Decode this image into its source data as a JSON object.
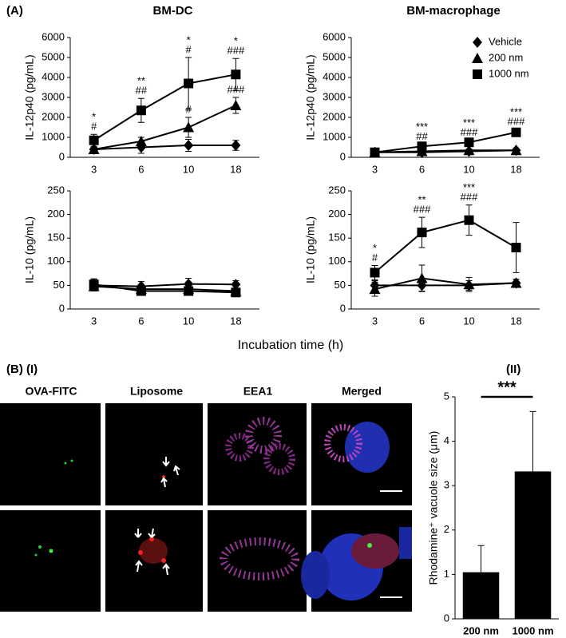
{
  "labels": {
    "panel_a": "(A)",
    "x_axis": "Incubation time (h)",
    "panel_b": "(B) (I)",
    "image_columns": [
      "OVA-FITC",
      "Liposome",
      "EEA1",
      "Merged"
    ]
  },
  "chart_data": [
    {
      "type": "line",
      "title": "BM-DC",
      "ylabel": "IL-12p40 (pg/mL)",
      "categories": [
        "3",
        "6",
        "10",
        "18"
      ],
      "ylim": [
        0,
        6000
      ],
      "yticks": [
        0,
        1000,
        2000,
        3000,
        4000,
        5000,
        6000
      ],
      "series": [
        {
          "marker": "diamond",
          "color": "#000000",
          "values": [
            400,
            500,
            600,
            600
          ],
          "errors": [
            100,
            300,
            300,
            250
          ]
        },
        {
          "marker": "triangle",
          "color": "#000000",
          "values": [
            400,
            800,
            1500,
            2600
          ],
          "errors": [
            100,
            200,
            500,
            400
          ],
          "annotations": [
            null,
            null,
            [
              "#"
            ],
            [
              "###"
            ]
          ]
        },
        {
          "marker": "square",
          "color": "#000000",
          "values": [
            850,
            2350,
            3700,
            4150
          ],
          "errors": [
            300,
            600,
            1300,
            800
          ],
          "annotations": [
            [
              "*",
              "#"
            ],
            [
              "**",
              "##"
            ],
            [
              "*",
              "#"
            ],
            [
              "*",
              "###"
            ]
          ]
        }
      ]
    },
    {
      "type": "line",
      "title": "BM-macrophage",
      "ylabel": "IL-12p40 (pg/mL)",
      "legend": "upper right",
      "categories": [
        "3",
        "6",
        "10",
        "18"
      ],
      "ylim": [
        0,
        6000
      ],
      "yticks": [
        0,
        1000,
        2000,
        3000,
        4000,
        5000,
        6000
      ],
      "series": [
        {
          "name": "Vehicle",
          "marker": "diamond",
          "color": "#000000",
          "values": [
            250,
            250,
            300,
            350
          ],
          "errors": [
            50,
            60,
            60,
            60
          ]
        },
        {
          "name": "200 nm",
          "marker": "triangle",
          "color": "#000000",
          "values": [
            250,
            300,
            350,
            350
          ],
          "errors": [
            50,
            60,
            60,
            60
          ]
        },
        {
          "name": "1000 nm",
          "marker": "square",
          "color": "#000000",
          "values": [
            250,
            550,
            750,
            1250
          ],
          "errors": [
            50,
            100,
            100,
            150
          ],
          "annotations": [
            null,
            [
              "***",
              "##"
            ],
            [
              "***",
              "###"
            ],
            [
              "***",
              "###"
            ]
          ]
        }
      ]
    },
    {
      "type": "line",
      "ylabel": "IL-10 (pg/mL)",
      "categories": [
        "3",
        "6",
        "10",
        "18"
      ],
      "ylim": [
        0,
        250
      ],
      "yticks": [
        0,
        50,
        100,
        150,
        200,
        250
      ],
      "series": [
        {
          "marker": "diamond",
          "color": "#000000",
          "values": [
            50,
            48,
            53,
            52
          ],
          "errors": [
            12,
            10,
            12,
            8
          ]
        },
        {
          "marker": "triangle",
          "color": "#000000",
          "values": [
            48,
            42,
            42,
            38
          ],
          "errors": [
            10,
            8,
            8,
            6
          ]
        },
        {
          "marker": "square",
          "color": "#000000",
          "values": [
            52,
            38,
            38,
            35
          ],
          "errors": [
            12,
            6,
            6,
            6
          ]
        }
      ]
    },
    {
      "type": "line",
      "ylabel": "IL-10 (pg/mL)",
      "categories": [
        "3",
        "6",
        "10",
        "18"
      ],
      "ylim": [
        0,
        250
      ],
      "yticks": [
        0,
        50,
        100,
        150,
        200,
        250
      ],
      "series": [
        {
          "marker": "diamond",
          "color": "#000000",
          "values": [
            50,
            50,
            50,
            55
          ],
          "errors": [
            10,
            12,
            10,
            8
          ]
        },
        {
          "marker": "triangle",
          "color": "#000000",
          "values": [
            42,
            65,
            52,
            55
          ],
          "errors": [
            15,
            28,
            15,
            8
          ]
        },
        {
          "marker": "square",
          "color": "#000000",
          "values": [
            77,
            162,
            188,
            130
          ],
          "errors": [
            15,
            32,
            32,
            53
          ],
          "annotations": [
            [
              "*",
              "#"
            ],
            [
              "**",
              "###"
            ],
            [
              "***",
              "###"
            ],
            null
          ]
        }
      ]
    },
    {
      "type": "bar",
      "title": "(II)",
      "ylabel": "Rhodamine⁺ vacuole size (μm)",
      "significance": "***",
      "categories": [
        "200 nm",
        "1000 nm"
      ],
      "values": [
        1.05,
        3.32
      ],
      "errors": [
        0.6,
        1.35
      ],
      "color": "#000000",
      "ylim": [
        0,
        5
      ],
      "yticks": [
        0,
        1,
        2,
        3,
        4,
        5
      ]
    }
  ]
}
